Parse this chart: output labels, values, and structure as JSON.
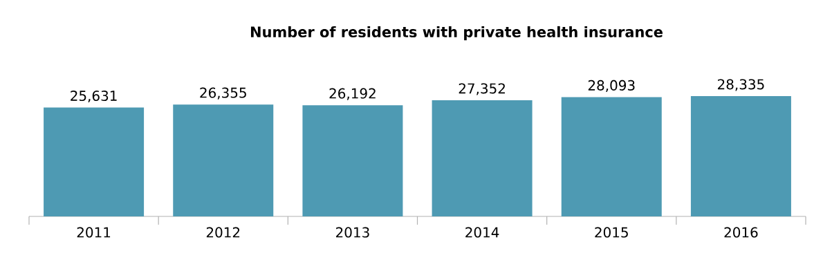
{
  "chart_data": {
    "type": "bar",
    "title": "Number of residents with private health insurance",
    "categories": [
      "2011",
      "2012",
      "2013",
      "2014",
      "2015",
      "2016"
    ],
    "values": [
      25631,
      26355,
      26192,
      27352,
      28093,
      28335
    ],
    "value_labels": [
      "25,631",
      "26,355",
      "26,192",
      "27,352",
      "28,093",
      "28,335"
    ],
    "color": "#4e9ab3"
  }
}
